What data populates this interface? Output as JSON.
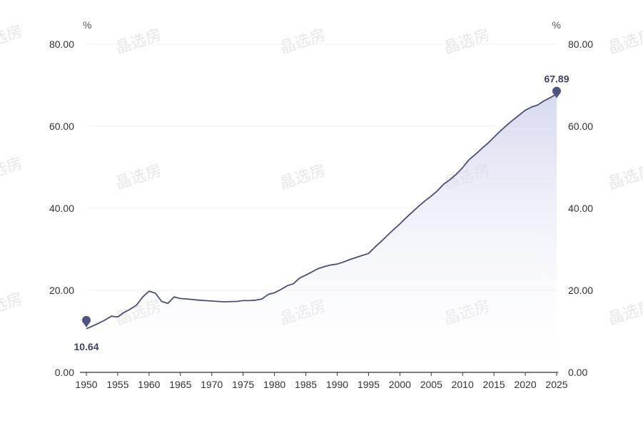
{
  "colors": {
    "line": "#4a4f73",
    "marker": "#4f5380",
    "area_top": "#c9cdea",
    "grid": "#f0f0f0",
    "axis": "#333333"
  },
  "watermark": "晶选房",
  "chart_data": {
    "type": "area",
    "left_unit": "%",
    "right_unit": "%",
    "ylim": [
      0,
      80
    ],
    "y_ticks": [
      "0.00",
      "20.00",
      "40.00",
      "60.00",
      "80.00"
    ],
    "xlim": [
      1950,
      2025
    ],
    "x_ticks": [
      "1950",
      "1955",
      "1960",
      "1965",
      "1970",
      "1975",
      "1980",
      "1985",
      "1990",
      "1995",
      "2000",
      "2005",
      "2010",
      "2015",
      "2020",
      "2025"
    ],
    "grid": true,
    "series": [
      {
        "x": [
          1950,
          1951,
          1952,
          1953,
          1954,
          1955,
          1956,
          1957,
          1958,
          1959,
          1960,
          1961,
          1962,
          1963,
          1964,
          1965,
          1966,
          1968,
          1970,
          1972,
          1974,
          1975,
          1976,
          1977,
          1978,
          1979,
          1980,
          1981,
          1982,
          1983,
          1984,
          1985,
          1986,
          1987,
          1988,
          1989,
          1990,
          1991,
          1992,
          1993,
          1994,
          1995,
          1996,
          1997,
          1998,
          1999,
          2000,
          2001,
          2002,
          2003,
          2004,
          2005,
          2006,
          2007,
          2008,
          2009,
          2010,
          2011,
          2012,
          2013,
          2014,
          2015,
          2016,
          2017,
          2018,
          2019,
          2020,
          2021,
          2022,
          2023,
          2024,
          2025
        ],
        "values": [
          10.64,
          11.3,
          12.0,
          12.8,
          13.7,
          13.5,
          14.6,
          15.4,
          16.4,
          18.4,
          19.8,
          19.3,
          17.3,
          16.8,
          18.4,
          18.0,
          17.9,
          17.6,
          17.4,
          17.2,
          17.3,
          17.5,
          17.5,
          17.6,
          17.9,
          19.0,
          19.4,
          20.2,
          21.1,
          21.6,
          23.0,
          23.7,
          24.5,
          25.3,
          25.8,
          26.2,
          26.4,
          26.9,
          27.5,
          28.0,
          28.5,
          29.0,
          30.5,
          31.9,
          33.4,
          34.8,
          36.2,
          37.7,
          39.1,
          40.5,
          41.8,
          43.0,
          44.3,
          45.9,
          47.0,
          48.3,
          49.9,
          51.8,
          53.1,
          54.5,
          55.8,
          57.3,
          58.8,
          60.2,
          61.5,
          62.7,
          63.9,
          64.7,
          65.2,
          66.2,
          67.0,
          67.89
        ]
      }
    ],
    "annotations": [
      {
        "x": 1950,
        "y": 10.64,
        "label": "10.64"
      },
      {
        "x": 2025,
        "y": 67.89,
        "label": "67.89"
      }
    ]
  }
}
